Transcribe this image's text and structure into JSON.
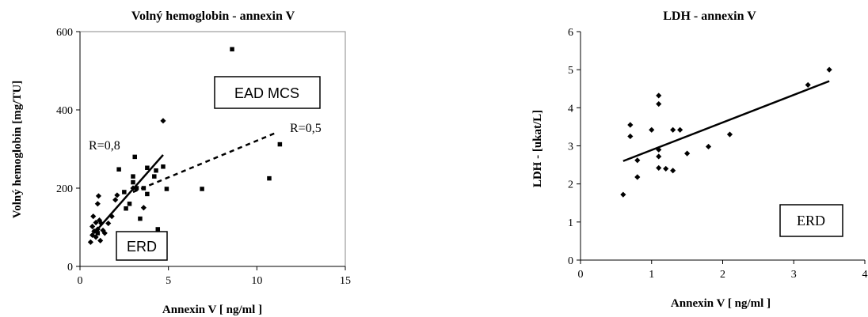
{
  "chart_data": [
    {
      "type": "scatter",
      "title": "Volný hemoglobin - annexin V",
      "xlabel": "Annexin  V [ ng/ml ]",
      "ylabel": "Volný hemoglobin [mg/TU]",
      "xlim": [
        0,
        15
      ],
      "ylim": [
        0,
        600
      ],
      "xticks": [
        "0",
        "5",
        "10",
        "15"
      ],
      "yticks": [
        "0",
        "200",
        "400",
        "600"
      ],
      "grid": false,
      "series": [
        {
          "marker": "diamond",
          "points": [
            [
              0.6,
              62
            ],
            [
              0.7,
              80
            ],
            [
              0.7,
              102
            ],
            [
              0.75,
              128
            ],
            [
              0.8,
              90
            ],
            [
              0.9,
              75
            ],
            [
              0.9,
              112
            ],
            [
              1.0,
              95
            ],
            [
              1.0,
              160
            ],
            [
              1.05,
              180
            ],
            [
              1.1,
              118
            ],
            [
              1.15,
              66
            ],
            [
              1.2,
              110
            ],
            [
              1.3,
              92
            ],
            [
              1.4,
              85
            ],
            [
              1.6,
              110
            ],
            [
              1.8,
              128
            ],
            [
              2.0,
              170
            ],
            [
              2.1,
              182
            ],
            [
              3.0,
              200
            ],
            [
              3.6,
              150
            ],
            [
              4.7,
              372
            ]
          ]
        },
        {
          "marker": "square",
          "points": [
            [
              1.0,
              85
            ],
            [
              2.2,
              248
            ],
            [
              2.3,
              80
            ],
            [
              2.5,
              190
            ],
            [
              2.6,
              148
            ],
            [
              2.8,
              160
            ],
            [
              3.0,
              215
            ],
            [
              3.0,
              230
            ],
            [
              3.1,
              280
            ],
            [
              3.2,
              200
            ],
            [
              3.4,
              122
            ],
            [
              3.6,
              200
            ],
            [
              3.8,
              185
            ],
            [
              3.8,
              252
            ],
            [
              4.2,
              230
            ],
            [
              4.3,
              245
            ],
            [
              4.4,
              95
            ],
            [
              4.7,
              255
            ],
            [
              4.9,
              198
            ],
            [
              6.9,
              198
            ],
            [
              8.6,
              555
            ],
            [
              10.7,
              225
            ],
            [
              11.3,
              312
            ]
          ]
        }
      ],
      "trendlines": [
        {
          "style": "solid",
          "x": [
            0.8,
            4.7
          ],
          "y": [
            85,
            285
          ]
        },
        {
          "style": "dashed",
          "x": [
            3.0,
            11.0
          ],
          "y": [
            190,
            340
          ]
        }
      ],
      "annotations": [
        {
          "text": "R=0,8"
        },
        {
          "text": "R=0,5"
        },
        {
          "text": "EAD MCS",
          "boxed": true
        },
        {
          "text": "ERD",
          "boxed": true
        }
      ]
    },
    {
      "type": "scatter",
      "title": "LDH - annexin V",
      "xlabel": "Annexin V [ ng/ml ]",
      "ylabel": "LDH - [ukat/L]",
      "xlim": [
        0,
        4
      ],
      "ylim": [
        0,
        6
      ],
      "xticks": [
        "0",
        "1",
        "2",
        "3",
        "4"
      ],
      "yticks": [
        "0",
        "1",
        "2",
        "3",
        "4",
        "5",
        "6"
      ],
      "grid": false,
      "series": [
        {
          "marker": "diamond",
          "points": [
            [
              0.6,
              1.72
            ],
            [
              0.7,
              3.55
            ],
            [
              0.7,
              3.25
            ],
            [
              0.8,
              2.62
            ],
            [
              0.8,
              2.18
            ],
            [
              1.0,
              3.42
            ],
            [
              1.1,
              4.32
            ],
            [
              1.1,
              4.1
            ],
            [
              1.1,
              2.9
            ],
            [
              1.1,
              2.72
            ],
            [
              1.1,
              2.42
            ],
            [
              1.2,
              2.4
            ],
            [
              1.3,
              3.42
            ],
            [
              1.3,
              2.35
            ],
            [
              1.4,
              3.42
            ],
            [
              1.5,
              2.8
            ],
            [
              1.8,
              2.98
            ],
            [
              2.1,
              3.3
            ],
            [
              3.2,
              4.6
            ],
            [
              3.5,
              5.0
            ]
          ]
        }
      ],
      "trendlines": [
        {
          "style": "solid",
          "x": [
            0.6,
            3.5
          ],
          "y": [
            2.6,
            4.7
          ]
        }
      ],
      "annotations": [
        {
          "text": "ERD",
          "boxed": true
        }
      ]
    }
  ]
}
